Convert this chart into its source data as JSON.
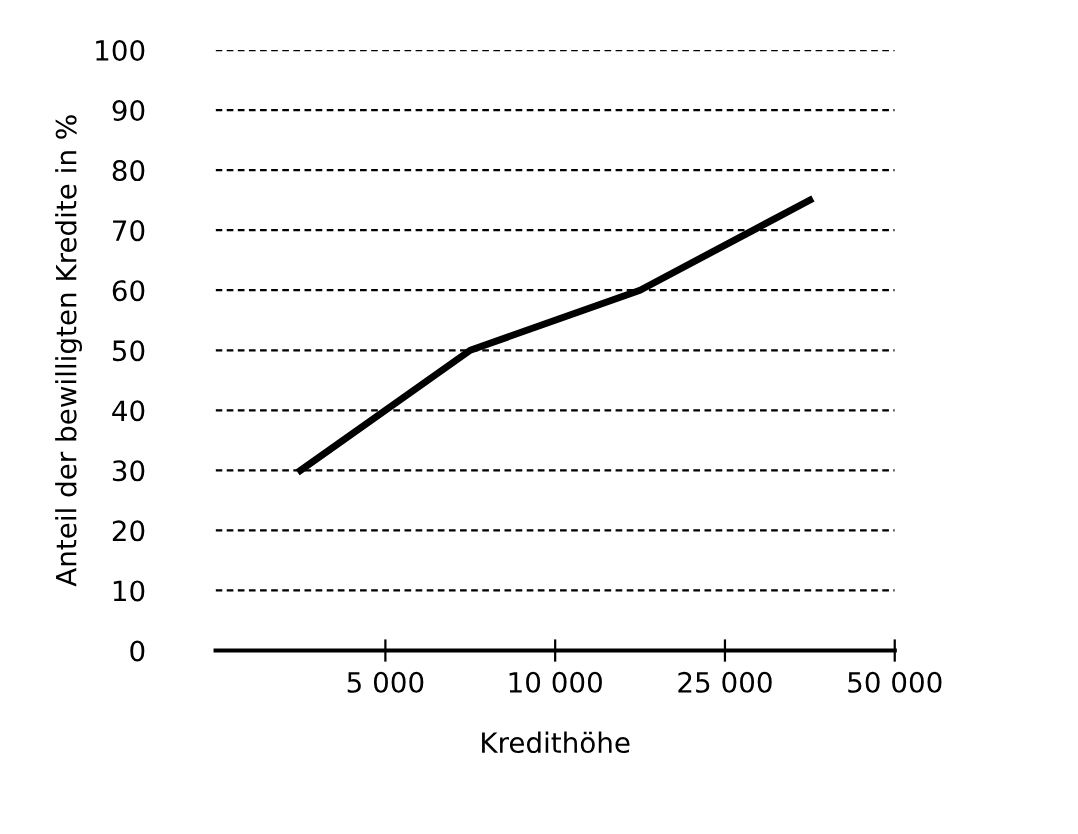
{
  "chart_data": {
    "type": "line",
    "xlabel": "Kredithöhe",
    "ylabel": "Anteil der bewilligten Kredite in %",
    "categories": [
      null,
      "5 000",
      null,
      "10 000",
      null,
      "25 000",
      null,
      "50 000"
    ],
    "series": [
      {
        "color": "#000000",
        "values": [
          30,
          null,
          50,
          null,
          60,
          null,
          75,
          null
        ]
      }
    ],
    "ylim": [
      0,
      100
    ],
    "yticks": [
      0,
      10,
      20,
      30,
      40,
      50,
      60,
      70,
      80,
      90,
      100
    ],
    "grid": "y",
    "line_style": "solid",
    "marker": "none"
  }
}
